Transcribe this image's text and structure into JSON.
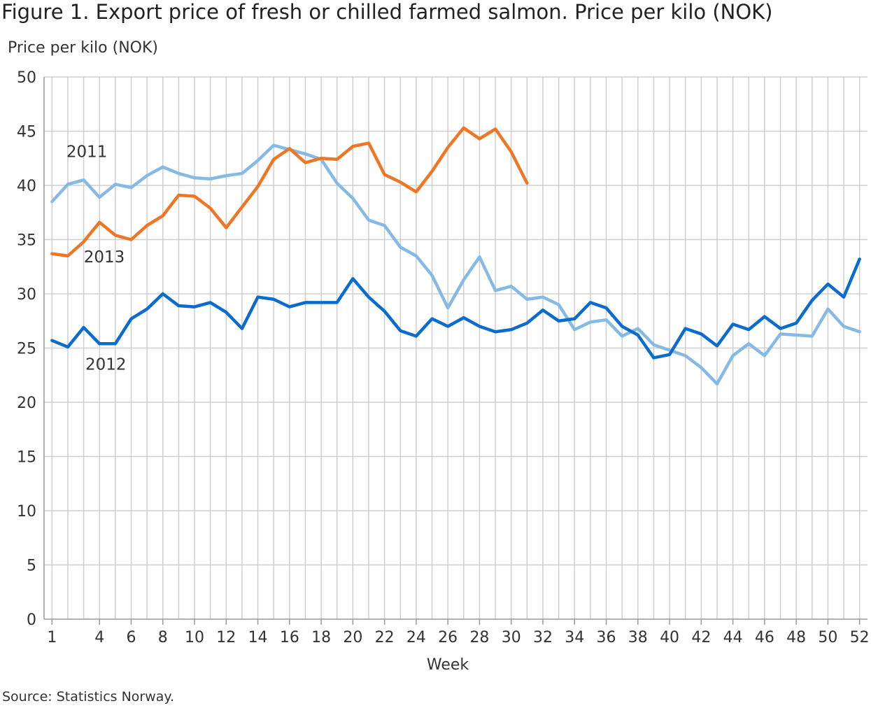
{
  "chart_data": {
    "type": "line",
    "title": "Figure 1. Export price of fresh or chilled farmed salmon. Price per kilo (NOK)",
    "ylabel": "Price per kilo (NOK)",
    "xlabel": "Week",
    "source": "Source: Statistics Norway.",
    "ylim": [
      0,
      50
    ],
    "yticks": [
      0,
      5,
      10,
      15,
      20,
      25,
      30,
      35,
      40,
      45,
      50
    ],
    "xlim": [
      1,
      52
    ],
    "xticks": [
      1,
      4,
      6,
      8,
      10,
      12,
      14,
      16,
      18,
      20,
      22,
      24,
      26,
      28,
      30,
      32,
      34,
      36,
      38,
      40,
      42,
      44,
      46,
      48,
      50,
      52
    ],
    "grid": true,
    "legend": "none (inline labels)",
    "series": [
      {
        "name": "2011",
        "color": "#85b9e6",
        "label_at": [
          3.2,
          42.6
        ],
        "values": [
          38.5,
          40.1,
          40.5,
          38.9,
          40.1,
          39.8,
          40.9,
          41.7,
          41.1,
          40.7,
          40.6,
          40.9,
          41.1,
          42.3,
          43.7,
          43.3,
          42.9,
          42.4,
          40.2,
          38.8,
          36.8,
          36.3,
          34.3,
          33.5,
          31.7,
          28.7,
          31.3,
          33.4,
          30.3,
          30.7,
          29.5,
          29.7,
          29.0,
          26.7,
          27.4,
          27.6,
          26.1,
          26.8,
          25.3,
          24.8,
          24.3,
          23.2,
          21.7,
          24.3,
          25.4,
          24.3,
          26.3,
          26.2,
          26.1,
          28.6,
          27.0,
          26.5
        ]
      },
      {
        "name": "2012",
        "color": "#0a6ccc",
        "label_at": [
          4.4,
          23.0
        ],
        "values": [
          25.7,
          25.1,
          26.9,
          25.4,
          25.4,
          27.7,
          28.6,
          30.0,
          28.9,
          28.8,
          29.2,
          28.3,
          26.8,
          29.7,
          29.5,
          28.8,
          29.2,
          29.2,
          29.2,
          31.4,
          29.7,
          28.4,
          26.6,
          26.1,
          27.7,
          27.0,
          27.8,
          27.0,
          26.5,
          26.7,
          27.3,
          28.5,
          27.5,
          27.7,
          29.2,
          28.7,
          27.0,
          26.2,
          24.1,
          24.4,
          26.8,
          26.3,
          25.2,
          27.2,
          26.7,
          27.9,
          26.8,
          27.3,
          29.4,
          30.9,
          29.7,
          33.2
        ]
      },
      {
        "name": "2013",
        "color": "#ee7624",
        "label_at": [
          4.3,
          32.9
        ],
        "values": [
          33.7,
          33.5,
          34.8,
          36.6,
          35.4,
          35.0,
          36.3,
          37.2,
          39.1,
          39.0,
          37.9,
          36.1,
          38.0,
          39.9,
          42.4,
          43.4,
          42.1,
          42.5,
          42.4,
          43.6,
          43.9,
          41.0,
          40.3,
          39.4,
          41.3,
          43.5,
          45.3,
          44.3,
          45.2,
          43.1,
          40.2
        ]
      }
    ]
  }
}
